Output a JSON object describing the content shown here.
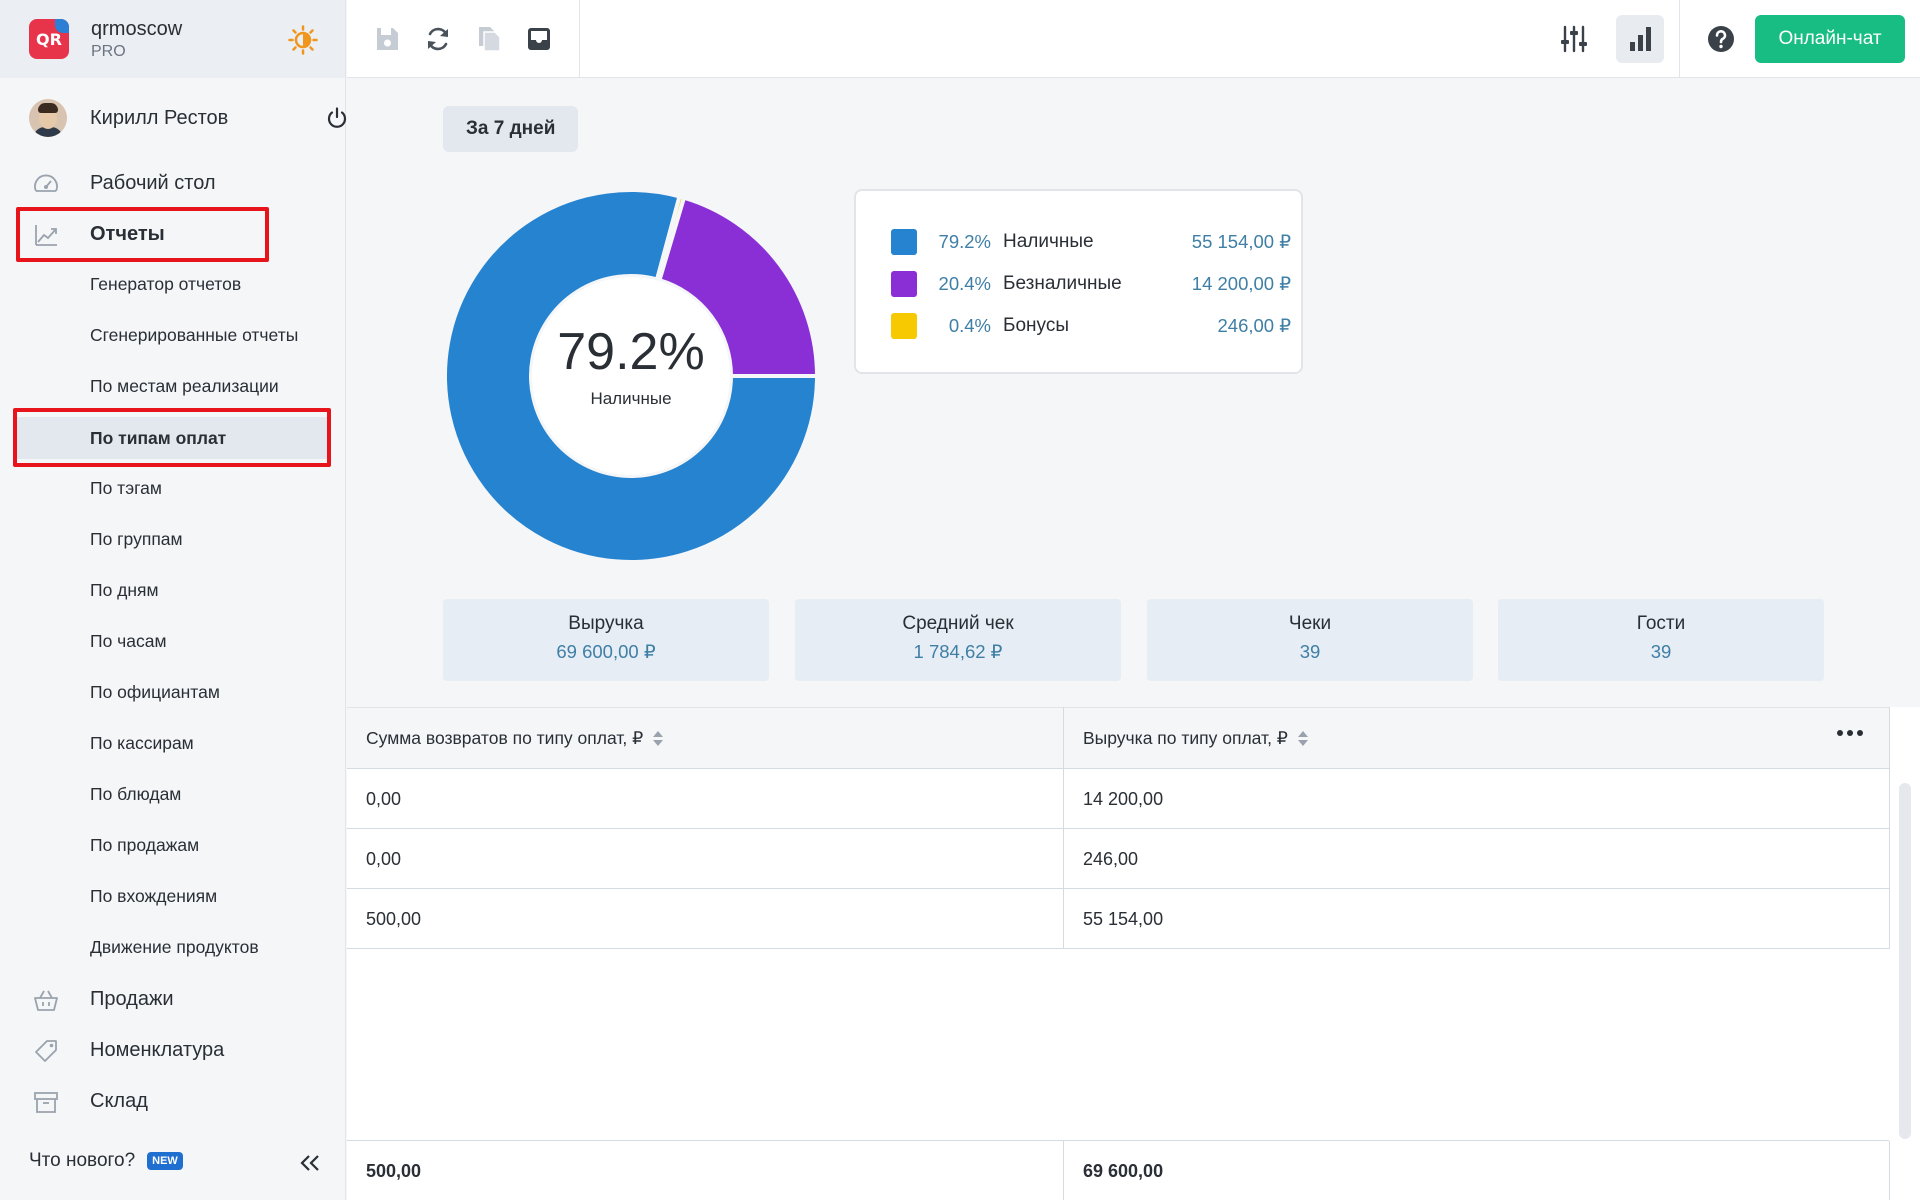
{
  "brand": {
    "name": "qrmoscow",
    "plan": "PRO",
    "logo_text": "QR"
  },
  "user": {
    "name": "Кирилл Рестов"
  },
  "nav": {
    "dashboard": "Рабочий стол",
    "reports": "Отчеты",
    "sales": "Продажи",
    "nomenclature": "Номенклатура",
    "warehouse": "Склад"
  },
  "reports_submenu": [
    "Генератор отчетов",
    "Сгенерированные отчеты",
    "По местам реализации",
    "По типам оплат",
    "По тэгам",
    "По группам",
    "По дням",
    "По часам",
    "По официантам",
    "По кассирам",
    "По блюдам",
    "По продажам",
    "По вхождениям",
    "Движение продуктов"
  ],
  "footer": {
    "whats_new": "Что нового?",
    "badge": "NEW"
  },
  "topbar": {
    "chat_button": "Онлайн-чат"
  },
  "period": "За 7 дней",
  "donut": {
    "center_value": "79.2%",
    "center_label": "Наличные",
    "segments": [
      {
        "name": "Наличные",
        "fraction": 0.792,
        "color": "#2683d0"
      },
      {
        "name": "Безналичные",
        "fraction": 0.204,
        "color": "#8a2fd6"
      },
      {
        "name": "Бонусы",
        "fraction": 0.004,
        "color": "#f7c900"
      }
    ]
  },
  "legend": [
    {
      "pct": "79.2%",
      "name": "Наличные",
      "value": "55 154,00 ₽",
      "color": "#2683d0"
    },
    {
      "pct": "20.4%",
      "name": "Безналичные",
      "value": "14 200,00 ₽",
      "color": "#8a2fd6"
    },
    {
      "pct": "0.4%",
      "name": "Бонусы",
      "value": "246,00 ₽",
      "color": "#f7c900"
    }
  ],
  "stats": [
    {
      "title": "Выручка",
      "value": "69 600,00 ₽"
    },
    {
      "title": "Средний чек",
      "value": "1 784,62 ₽"
    },
    {
      "title": "Чеки",
      "value": "39"
    },
    {
      "title": "Гости",
      "value": "39"
    }
  ],
  "table": {
    "columns": [
      "Сумма возвратов по типу оплат, ₽",
      "Выручка по типу оплат, ₽"
    ],
    "rows": [
      [
        "0,00",
        "14 200,00"
      ],
      [
        "0,00",
        "246,00"
      ],
      [
        "500,00",
        "55 154,00"
      ]
    ],
    "totals": [
      "500,00",
      "69 600,00"
    ]
  }
}
